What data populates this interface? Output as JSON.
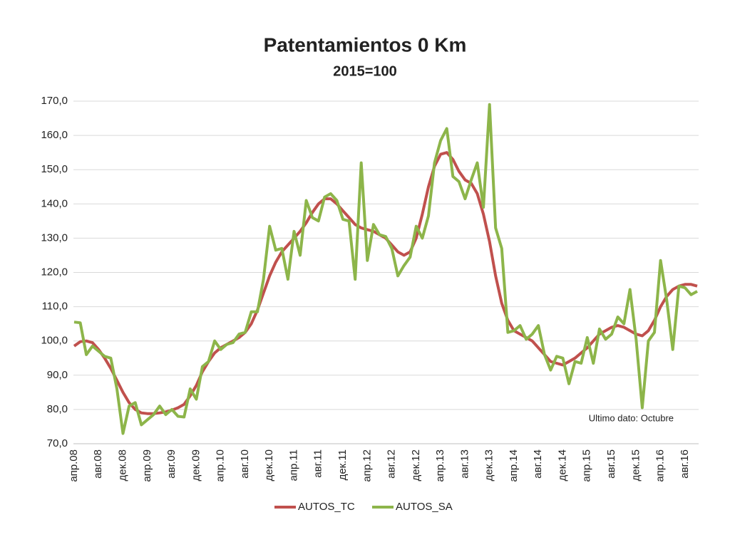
{
  "chart_data": {
    "type": "line",
    "title": "Patentamientos 0 Km",
    "subtitle": "2015=100",
    "annotation": "Ultimo dato: Octubre",
    "categories": [
      "апр.08",
      null,
      null,
      null,
      "авг.08",
      null,
      null,
      null,
      "дек.08",
      null,
      null,
      null,
      "апр.09",
      null,
      null,
      null,
      "авг.09",
      null,
      null,
      null,
      "дек.09",
      null,
      null,
      null,
      "апр.10",
      null,
      null,
      null,
      "авг.10",
      null,
      null,
      null,
      "дек.10",
      null,
      null,
      null,
      "апр.11",
      null,
      null,
      null,
      "авг.11",
      null,
      null,
      null,
      "дек.11",
      null,
      null,
      null,
      "апр.12",
      null,
      null,
      null,
      "авг.12",
      null,
      null,
      null,
      "дек.12",
      null,
      null,
      null,
      "апр.13",
      null,
      null,
      null,
      "авг.13",
      null,
      null,
      null,
      "дек.13",
      null,
      null,
      null,
      "апр.14",
      null,
      null,
      null,
      "авг.14",
      null,
      null,
      null,
      "дек.14",
      null,
      null,
      null,
      "апр.15",
      null,
      null,
      null,
      "авг.15",
      null,
      null,
      null,
      "дек.15",
      null,
      null,
      null,
      "апр.16",
      null,
      null,
      null,
      "авг.16",
      null,
      null
    ],
    "series": [
      {
        "name": "AUTOS_TC",
        "color": "#c0504d",
        "values": [
          98.5,
          99.8,
          100,
          99.5,
          97.5,
          95,
          92,
          88.5,
          85,
          82,
          80,
          79,
          78.8,
          78.8,
          79,
          79.3,
          79.8,
          80.5,
          81.5,
          84,
          87,
          91,
          94,
          96.5,
          98,
          99,
          100,
          101,
          102.5,
          105,
          109,
          114,
          119,
          123,
          126,
          128,
          130,
          132,
          134.5,
          137.5,
          140,
          141.5,
          141.5,
          140,
          138,
          136,
          134,
          133,
          132.5,
          132,
          131,
          130,
          128,
          126,
          125,
          126,
          130,
          137,
          145,
          151,
          154.5,
          155,
          153,
          149.5,
          147,
          146,
          143,
          137,
          129,
          119,
          111,
          106,
          103,
          102,
          101,
          100,
          98,
          96,
          94,
          93.5,
          93,
          94,
          95,
          96.5,
          98,
          100,
          102,
          103,
          104,
          104.5,
          104,
          103,
          102,
          101.5,
          103,
          106,
          110,
          113,
          115,
          116,
          116.5,
          116.5,
          116
        ]
      },
      {
        "name": "AUTOS_SA",
        "color": "#8db54a",
        "values": [
          105.5,
          105.3,
          96,
          98.5,
          97,
          95.5,
          95,
          86,
          73,
          81,
          82,
          75.5,
          77,
          78.5,
          81,
          78.5,
          80,
          78,
          77.8,
          86,
          83,
          92.5,
          94,
          100,
          97.5,
          99,
          99.5,
          102,
          102.5,
          108.5,
          108.5,
          118,
          133.5,
          126.5,
          127,
          118,
          132,
          125,
          141,
          136,
          135,
          142,
          143,
          141,
          135.5,
          135,
          118,
          152,
          123.5,
          134,
          131,
          130.5,
          127,
          119,
          122,
          124.5,
          133.5,
          130,
          136.5,
          152,
          158.5,
          162,
          148,
          146.5,
          141.5,
          147,
          152,
          139,
          169,
          133,
          127,
          102.5,
          103,
          104.5,
          100.5,
          102,
          104.5,
          96,
          91.5,
          95.5,
          95,
          87.5,
          94,
          93.5,
          101,
          93.5,
          103.5,
          100.5,
          102,
          107,
          105,
          115,
          100.5,
          80.5,
          100,
          102.5,
          123.5,
          112,
          97.5,
          116,
          115.5,
          113.5,
          114.5
        ]
      }
    ],
    "ylim": [
      70,
      170
    ],
    "yticks": [
      {
        "value": 70,
        "label": "70,0"
      },
      {
        "value": 80,
        "label": "80,0"
      },
      {
        "value": 90,
        "label": "90,0"
      },
      {
        "value": 100,
        "label": "100,0"
      },
      {
        "value": 110,
        "label": "110,0"
      },
      {
        "value": 120,
        "label": "120,0"
      },
      {
        "value": 130,
        "label": "130,0"
      },
      {
        "value": 140,
        "label": "140,0"
      },
      {
        "value": 150,
        "label": "150,0"
      },
      {
        "value": 160,
        "label": "160,0"
      },
      {
        "value": 170,
        "label": "170,0"
      }
    ],
    "grid": true,
    "legend": "bottom"
  }
}
